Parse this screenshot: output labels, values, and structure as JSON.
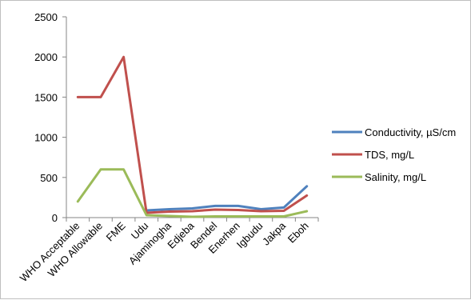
{
  "chart_data": {
    "type": "line",
    "title": "",
    "xlabel": "",
    "ylabel": "",
    "ylim": [
      0,
      2500
    ],
    "yticks": [
      0,
      500,
      1000,
      1500,
      2000,
      2500
    ],
    "grid": false,
    "legend_position": "right",
    "categories": [
      "WHO Acceptable",
      "WHO Allowable",
      "FME",
      "Udu",
      "Ajaminogha",
      "Edjeba",
      "Bendel",
      "Enerhen",
      "Igbudu",
      "Jakpa",
      "Eboh"
    ],
    "series": [
      {
        "name": "Conductivity, µS/cm",
        "color": "#4f81bd",
        "values": [
          null,
          null,
          null,
          90,
          105,
          115,
          145,
          145,
          105,
          125,
          390
        ]
      },
      {
        "name": "TDS, mg/L",
        "color": "#c0504d",
        "values": [
          1500,
          1500,
          2000,
          60,
          75,
          80,
          100,
          95,
          80,
          85,
          275
        ]
      },
      {
        "name": "Salinity, mg/L",
        "color": "#9bbb59",
        "values": [
          200,
          600,
          600,
          30,
          20,
          10,
          15,
          15,
          15,
          15,
          80
        ]
      }
    ]
  }
}
